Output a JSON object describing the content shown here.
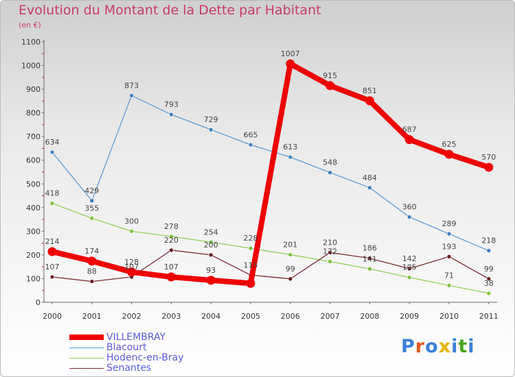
{
  "header": {
    "title": "Evolution du Montant de la Dette par Habitant",
    "unit": "(en €)"
  },
  "logo": {
    "text": "Proxiti",
    "letter_colors": [
      "#3a7fd8",
      "#e05a1a",
      "#3a7fd8",
      "#e5b400",
      "#3a7fd8",
      "#4aa51c",
      "#3a7fd8"
    ]
  },
  "chart_data": {
    "type": "line",
    "x": [
      "2000",
      "2001",
      "2002",
      "2003",
      "2004",
      "2005",
      "2006",
      "2007",
      "2008",
      "2009",
      "2010",
      "2011"
    ],
    "ylim": [
      0,
      1100
    ],
    "yticks": [
      0,
      100,
      200,
      300,
      400,
      500,
      600,
      700,
      800,
      900,
      1000,
      1100
    ],
    "grid": false,
    "legend_position": "bottom-left",
    "series": [
      {
        "name": "Blacourt",
        "color": "#5c9ad2",
        "dot": "#3d7fc0",
        "values": [
          634,
          429,
          873,
          793,
          729,
          665,
          613,
          548,
          484,
          360,
          289,
          218
        ],
        "labels": [
          "634",
          "429",
          "873",
          "793",
          "729",
          "665",
          "613",
          "548",
          "484",
          "360",
          "289",
          "218"
        ]
      },
      {
        "name": "Hodenc-en-Bray",
        "color": "#8fd05a",
        "dot": "#7fc240",
        "values": [
          418,
          355,
          300,
          278,
          254,
          228,
          201,
          172,
          141,
          105,
          71,
          38
        ],
        "labels": [
          "418",
          "355",
          "300",
          "278",
          "254",
          "228",
          "201",
          "172",
          "141",
          "105",
          "71",
          "38"
        ]
      },
      {
        "name": "Senantes",
        "color": "#7a2b30",
        "dot": "#6a1f24",
        "values": [
          107,
          88,
          107,
          220,
          200,
          115,
          99,
          210,
          186,
          142,
          193,
          99
        ],
        "labels": [
          "107",
          "88",
          "107",
          "220",
          "200",
          "115",
          "99",
          "210",
          "186",
          "142",
          "193",
          "99"
        ]
      },
      {
        "name": "VILLEMBRAY",
        "color": "#ee0000",
        "dot": "#ee0000",
        "values": [
          214,
          174,
          128,
          107,
          93,
          80,
          1007,
          915,
          851,
          687,
          625,
          570
        ],
        "labels": [
          "214",
          "174",
          "128",
          "107",
          "93",
          "",
          "1007",
          "915",
          "851",
          "687",
          "625",
          "570"
        ]
      }
    ]
  }
}
